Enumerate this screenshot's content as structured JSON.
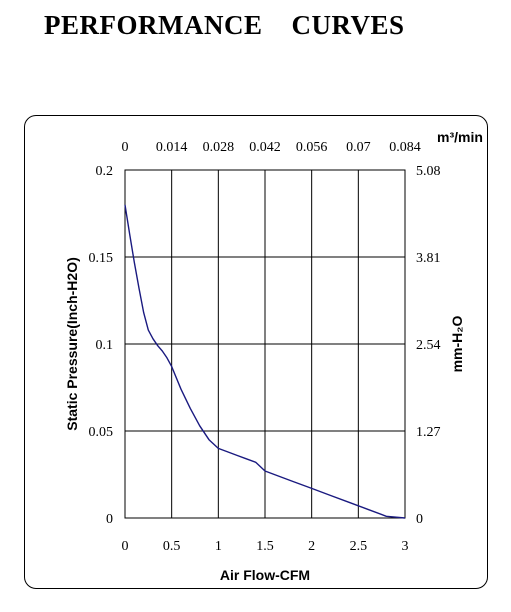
{
  "page": {
    "title": "PERFORMANCE    CURVES"
  },
  "chart_data": {
    "type": "line",
    "xlabel": "Air Flow-CFM",
    "ylabel": "Static Pressure(Inch-H2O)",
    "x2label": "m³/min",
    "y2label": "mm-H₂O",
    "xlim": [
      0,
      3
    ],
    "ylim": [
      0,
      0.2
    ],
    "x_ticks": [
      "0",
      "0.5",
      "1",
      "1.5",
      "2",
      "2.5",
      "3"
    ],
    "y_ticks": [
      "0",
      "0.05",
      "0.1",
      "0.15",
      "0.2"
    ],
    "x2_ticks": [
      "0",
      "0.014",
      "0.028",
      "0.042",
      "0.056",
      "0.07",
      "0.084"
    ],
    "y2_ticks": [
      "0",
      "1.27",
      "2.54",
      "3.81",
      "5.08"
    ],
    "grid": true,
    "line_color": "#1a1a80",
    "series": [
      {
        "x": [
          0,
          0.05,
          0.1,
          0.15,
          0.2,
          0.25,
          0.3,
          0.35,
          0.4,
          0.45,
          0.5,
          0.6,
          0.7,
          0.8,
          0.9,
          1.0,
          1.1,
          1.2,
          1.3,
          1.4,
          1.5,
          1.6,
          1.8,
          2.0,
          2.2,
          2.4,
          2.6,
          2.8,
          3.0
        ],
        "y": [
          0.18,
          0.163,
          0.147,
          0.132,
          0.118,
          0.108,
          0.103,
          0.099,
          0.096,
          0.092,
          0.087,
          0.074,
          0.063,
          0.053,
          0.045,
          0.04,
          0.038,
          0.036,
          0.034,
          0.032,
          0.027,
          0.025,
          0.021,
          0.017,
          0.013,
          0.009,
          0.005,
          0.001,
          0.0
        ]
      }
    ]
  }
}
